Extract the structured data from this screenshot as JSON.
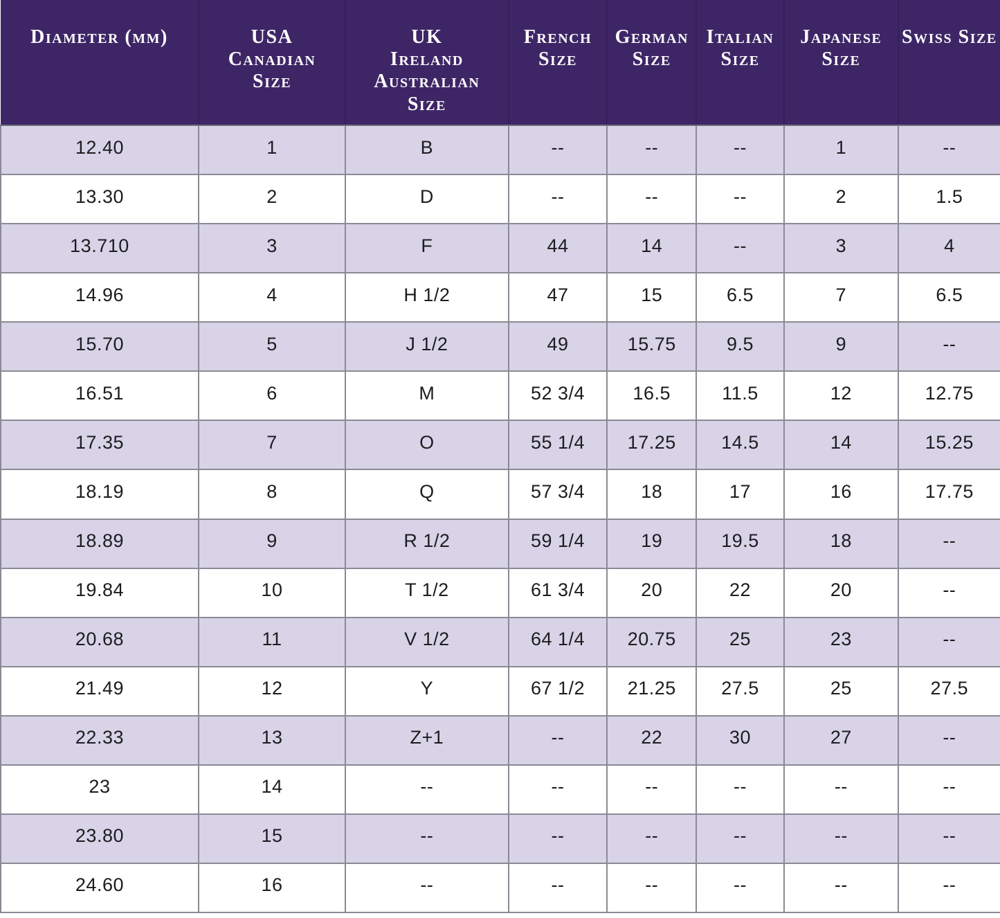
{
  "table": {
    "columns": [
      {
        "id": "diameter-mm",
        "label": "Diameter (mm)",
        "width_pct": 19.8
      },
      {
        "id": "usa-canadian",
        "label": "USA\nCanadian\nSize",
        "width_pct": 14.7
      },
      {
        "id": "uk-ireland-australian",
        "label": "UK\nIreland\nAustralian\nSize",
        "width_pct": 16.3
      },
      {
        "id": "french",
        "label": "French\nSize",
        "width_pct": 9.9
      },
      {
        "id": "german",
        "label": "German\nSize",
        "width_pct": 8.9
      },
      {
        "id": "italian",
        "label": "Italian\nSize",
        "width_pct": 8.8
      },
      {
        "id": "japanese",
        "label": "Japanese Size",
        "width_pct": 11.4
      },
      {
        "id": "swiss",
        "label": "Swiss Size",
        "width_pct": 10.2
      }
    ],
    "empty_marker": "--",
    "colors": {
      "header_bg": "#3E2666",
      "header_text": "#FFFFFF",
      "stripe_bg": "#D8D3E7",
      "row_bg": "#FFFFFF",
      "grid": "#8A8A94",
      "cell_text": "#1C1C20"
    }
  },
  "chart_data": {
    "type": "table",
    "title": "",
    "columns": [
      "Diameter (mm)",
      "USA Canadian Size",
      "UK Ireland Australian Size",
      "French Size",
      "German Size",
      "Italian Size",
      "Japanese Size",
      "Swiss Size"
    ],
    "rows": [
      [
        "12.40",
        "1",
        "B",
        "--",
        "--",
        "--",
        "1",
        "--"
      ],
      [
        "13.30",
        "2",
        "D",
        "--",
        "--",
        "--",
        "2",
        "1.5"
      ],
      [
        "13.710",
        "3",
        "F",
        "44",
        "14",
        "--",
        "3",
        "4"
      ],
      [
        "14.96",
        "4",
        "H 1/2",
        "47",
        "15",
        "6.5",
        "7",
        "6.5"
      ],
      [
        "15.70",
        "5",
        "J 1/2",
        "49",
        "15.75",
        "9.5",
        "9",
        "--"
      ],
      [
        "16.51",
        "6",
        "M",
        "52 3/4",
        "16.5",
        "11.5",
        "12",
        "12.75"
      ],
      [
        "17.35",
        "7",
        "O",
        "55 1/4",
        "17.25",
        "14.5",
        "14",
        "15.25"
      ],
      [
        "18.19",
        "8",
        "Q",
        "57 3/4",
        "18",
        "17",
        "16",
        "17.75"
      ],
      [
        "18.89",
        "9",
        "R 1/2",
        "59 1/4",
        "19",
        "19.5",
        "18",
        "--"
      ],
      [
        "19.84",
        "10",
        "T 1/2",
        "61 3/4",
        "20",
        "22",
        "20",
        "--"
      ],
      [
        "20.68",
        "11",
        "V 1/2",
        "64 1/4",
        "20.75",
        "25",
        "23",
        "--"
      ],
      [
        "21.49",
        "12",
        "Y",
        "67 1/2",
        "21.25",
        "27.5",
        "25",
        "27.5"
      ],
      [
        "22.33",
        "13",
        "Z+1",
        "--",
        "22",
        "30",
        "27",
        "--"
      ],
      [
        "23",
        "14",
        "--",
        "--",
        "--",
        "--",
        "--",
        "--"
      ],
      [
        "23.80",
        "15",
        "--",
        "--",
        "--",
        "--",
        "--",
        "--"
      ],
      [
        "24.60",
        "16",
        "--",
        "--",
        "--",
        "--",
        "--",
        "--"
      ]
    ]
  }
}
